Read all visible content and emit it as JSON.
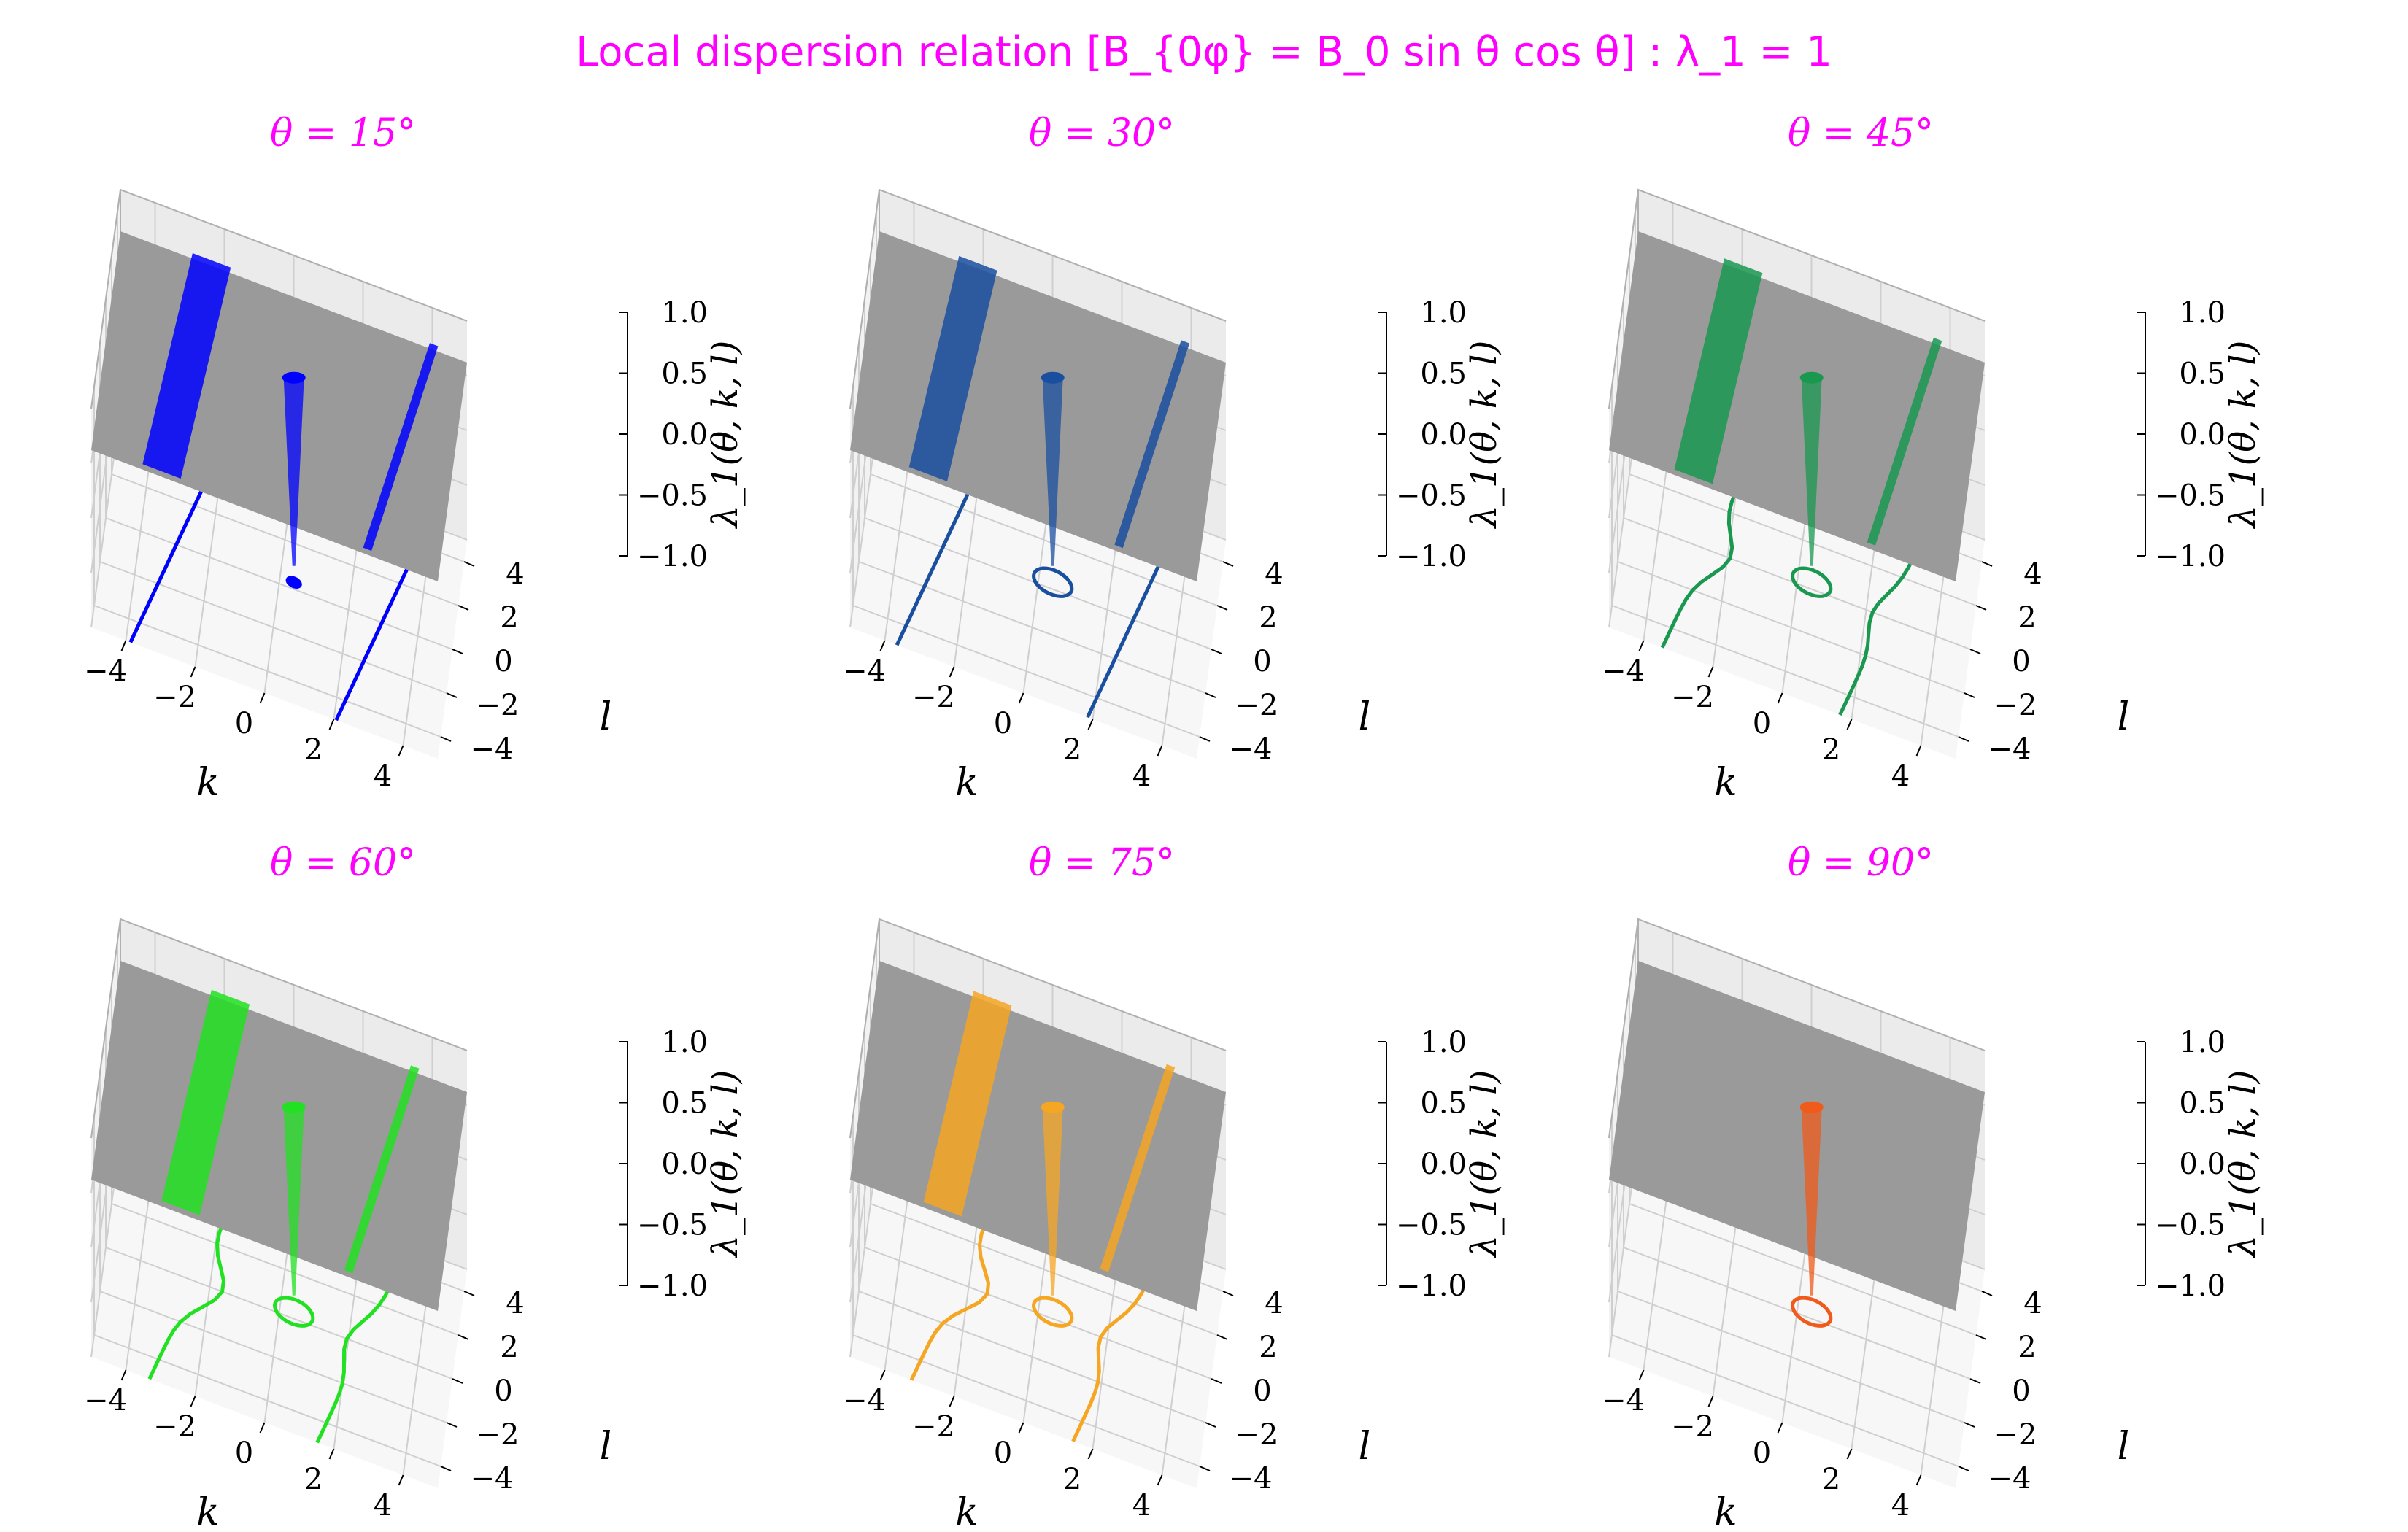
{
  "figure": {
    "title": "Local dispersion relation [B_{0φ} = B_0 sin θ cos θ] : λ_1 = 1"
  },
  "chart_data": [
    {
      "type": "surface3d",
      "title": "θ = 15°",
      "color": "#0000ff",
      "theta": 15,
      "xlabel": "k",
      "ylabel": "l",
      "zlabel": "λ_1(θ, k, l)",
      "xlim": [
        -5,
        5
      ],
      "ylim": [
        -5,
        5
      ],
      "zlim": [
        -1,
        1
      ],
      "xticks": [
        "−4",
        "−2",
        "0",
        "2",
        "4"
      ],
      "yticks": [
        "−4",
        "−2",
        "0",
        "2",
        "4"
      ],
      "zticks": [
        "1.0",
        "0.5",
        "0.0",
        "−0.5",
        "−1.0"
      ],
      "plane_level": 1.0
    },
    {
      "type": "surface3d",
      "title": "θ = 30°",
      "color": "#1a4fa0",
      "theta": 30,
      "xlabel": "k",
      "ylabel": "l",
      "zlabel": "λ_1(θ, k, l)",
      "xlim": [
        -5,
        5
      ],
      "ylim": [
        -5,
        5
      ],
      "zlim": [
        -1,
        1
      ],
      "xticks": [
        "−4",
        "−2",
        "0",
        "2",
        "4"
      ],
      "yticks": [
        "−4",
        "−2",
        "0",
        "2",
        "4"
      ],
      "zticks": [
        "1.0",
        "0.5",
        "0.0",
        "−0.5",
        "−1.0"
      ],
      "plane_level": 1.0
    },
    {
      "type": "surface3d",
      "title": "θ = 45°",
      "color": "#1a9850",
      "theta": 45,
      "xlabel": "k",
      "ylabel": "l",
      "zlabel": "λ_1(θ, k, l)",
      "xlim": [
        -5,
        5
      ],
      "ylim": [
        -5,
        5
      ],
      "zlim": [
        -1,
        1
      ],
      "xticks": [
        "−4",
        "−2",
        "0",
        "2",
        "4"
      ],
      "yticks": [
        "−4",
        "−2",
        "0",
        "2",
        "4"
      ],
      "zticks": [
        "1.0",
        "0.5",
        "0.0",
        "−0.5",
        "−1.0"
      ],
      "plane_level": 1.0
    },
    {
      "type": "surface3d",
      "title": "θ = 60°",
      "color": "#22e022",
      "theta": 60,
      "xlabel": "k",
      "ylabel": "l",
      "zlabel": "λ_1(θ, k, l)",
      "xlim": [
        -5,
        5
      ],
      "ylim": [
        -5,
        5
      ],
      "zlim": [
        -1,
        1
      ],
      "xticks": [
        "−4",
        "−2",
        "0",
        "2",
        "4"
      ],
      "yticks": [
        "−4",
        "−2",
        "0",
        "2",
        "4"
      ],
      "zticks": [
        "1.0",
        "0.5",
        "0.0",
        "−0.5",
        "−1.0"
      ],
      "plane_level": 1.0
    },
    {
      "type": "surface3d",
      "title": "θ = 75°",
      "color": "#f5a623",
      "theta": 75,
      "xlabel": "k",
      "ylabel": "l",
      "zlabel": "λ_1(θ, k, l)",
      "xlim": [
        -5,
        5
      ],
      "ylim": [
        -5,
        5
      ],
      "zlim": [
        -1,
        1
      ],
      "xticks": [
        "−4",
        "−2",
        "0",
        "2",
        "4"
      ],
      "yticks": [
        "−4",
        "−2",
        "0",
        "2",
        "4"
      ],
      "zticks": [
        "1.0",
        "0.5",
        "0.0",
        "−0.5",
        "−1.0"
      ],
      "plane_level": 1.0
    },
    {
      "type": "surface3d",
      "title": "θ = 90°",
      "color": "#f05a1a",
      "theta": 90,
      "xlabel": "k",
      "ylabel": "l",
      "zlabel": "λ_1(θ, k, l)",
      "xlim": [
        -5,
        5
      ],
      "ylim": [
        -5,
        5
      ],
      "zlim": [
        -1,
        1
      ],
      "xticks": [
        "−4",
        "−2",
        "0",
        "2",
        "4"
      ],
      "yticks": [
        "−4",
        "−2",
        "0",
        "2",
        "4"
      ],
      "zticks": [
        "1.0",
        "0.5",
        "0.0",
        "−0.5",
        "−1.0"
      ],
      "plane_level": 1.0
    }
  ]
}
